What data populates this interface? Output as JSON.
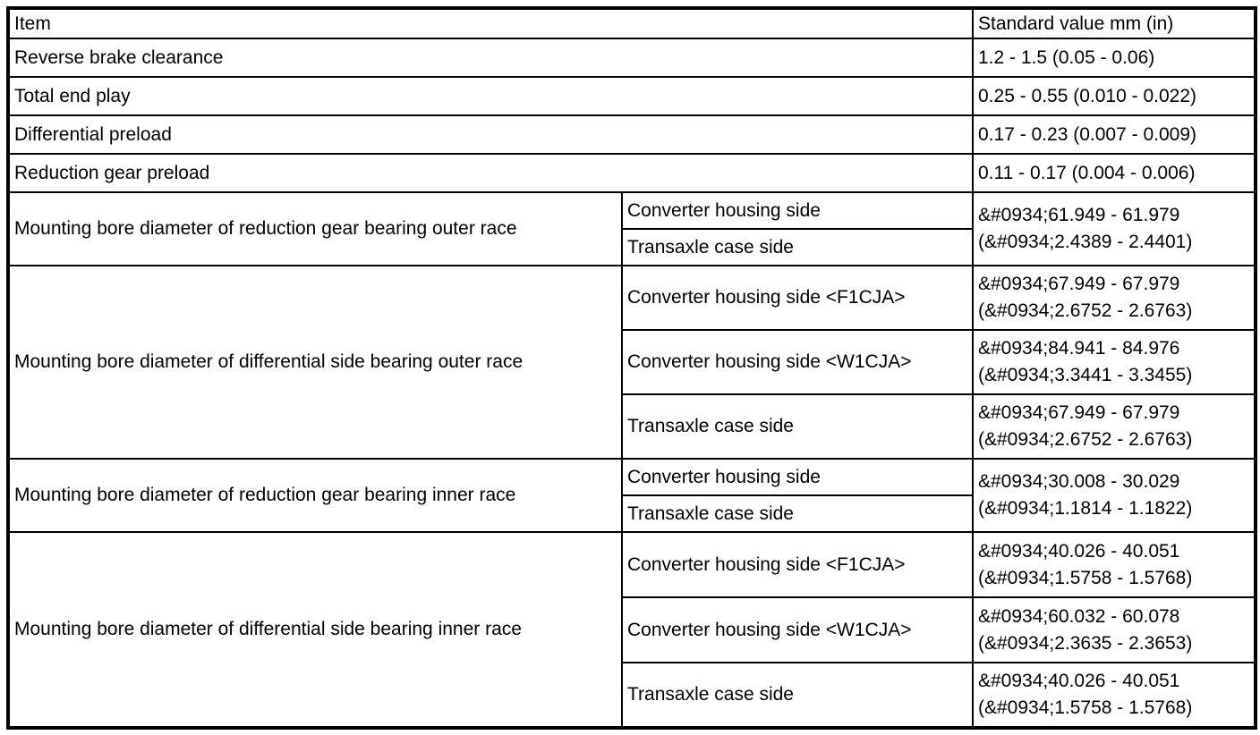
{
  "table": {
    "header": {
      "item": "Item",
      "value": "Standard value mm (in)"
    },
    "rows": [
      {
        "item": "Reverse brake clearance",
        "value": "1.2 - 1.5 (0.05 - 0.06)"
      },
      {
        "item": "Total end play",
        "value": "0.25 - 0.55 (0.010 - 0.022)"
      },
      {
        "item": "Differential preload",
        "value": "0.17 - 0.23 (0.007 - 0.009)"
      },
      {
        "item": "Reduction gear preload",
        "value": "0.11 - 0.17 (0.004 - 0.006)"
      },
      {
        "item": "Mounting bore diameter of reduction gear bearing outer race",
        "sides": [
          {
            "side": "Converter housing side",
            "value": "&#0934;61.949 - 61.979\n(&#0934;2.4389 - 2.4401)",
            "value_spans_rows": 2
          },
          {
            "side": "Transaxle case side"
          }
        ]
      },
      {
        "item": "Mounting bore diameter of differential side bearing outer race",
        "sides": [
          {
            "side": "Converter housing side <F1CJA>",
            "value": "&#0934;67.949 - 67.979\n(&#0934;2.6752 - 2.6763)"
          },
          {
            "side": "Converter housing side <W1CJA>",
            "value": "&#0934;84.941 - 84.976\n(&#0934;3.3441 - 3.3455)"
          },
          {
            "side": "Transaxle case side",
            "value": "&#0934;67.949 - 67.979\n(&#0934;2.6752 - 2.6763)"
          }
        ]
      },
      {
        "item": "Mounting bore diameter of reduction gear bearing inner race",
        "sides": [
          {
            "side": "Converter housing side",
            "value": "&#0934;30.008 - 30.029\n(&#0934;1.1814 - 1.1822)",
            "value_spans_rows": 2
          },
          {
            "side": "Transaxle case side"
          }
        ]
      },
      {
        "item": "Mounting bore diameter of differential side bearing inner race",
        "sides": [
          {
            "side": "Converter housing side <F1CJA>",
            "value": "&#0934;40.026 - 40.051\n(&#0934;1.5758 - 1.5768)"
          },
          {
            "side": "Converter housing side <W1CJA>",
            "value": "&#0934;60.032 - 60.078\n(&#0934;2.3635 - 2.3653)"
          },
          {
            "side": "Transaxle case side",
            "value": "&#0934;40.026 - 40.051\n(&#0934;1.5758 - 1.5768)"
          }
        ]
      }
    ]
  }
}
